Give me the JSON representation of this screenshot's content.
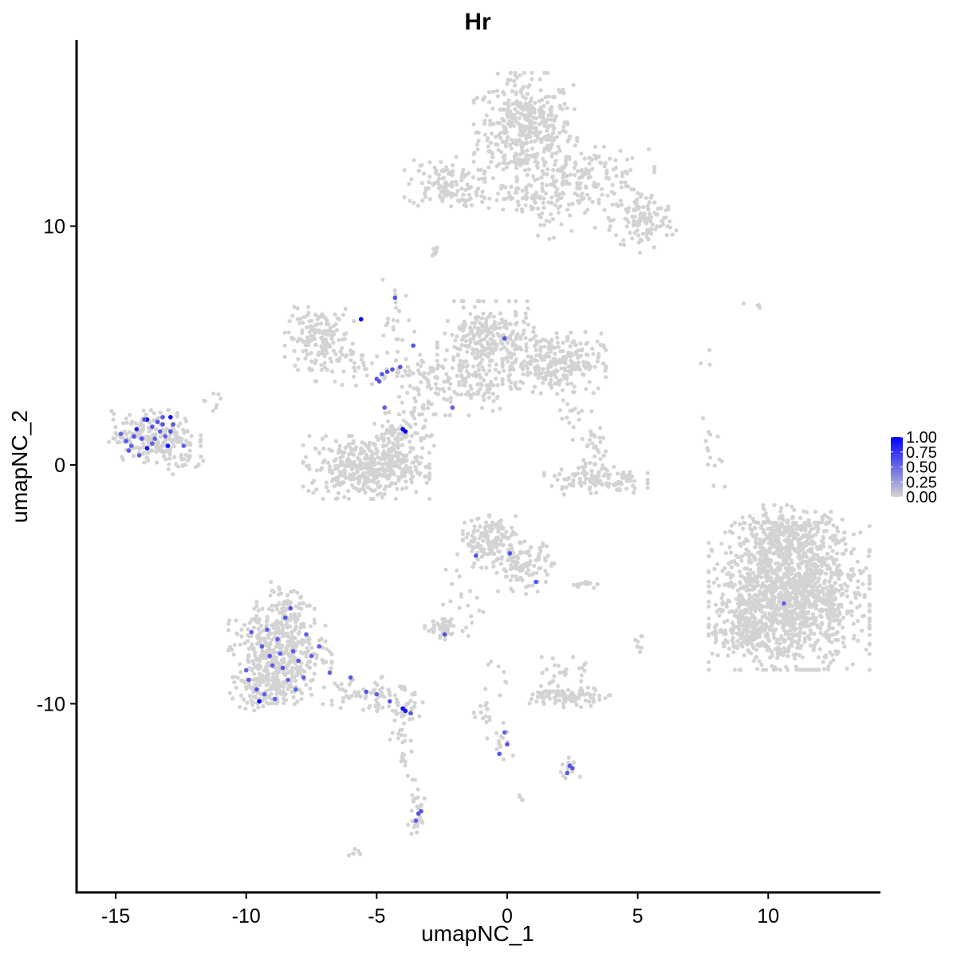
{
  "chart_data": {
    "type": "scatter",
    "title": "Hr",
    "xlabel": "umapNC_1",
    "ylabel": "umapNC_2",
    "xlim": [
      -16.5,
      14.3
    ],
    "ylim": [
      -17.9,
      17.8
    ],
    "x_ticks": [
      -15,
      -10,
      -5,
      0,
      5,
      10
    ],
    "x_tick_labels": [
      "-15",
      "-10",
      "-5",
      "0",
      "5",
      "10"
    ],
    "y_ticks": [
      -10,
      0,
      10
    ],
    "y_tick_labels": [
      "-10",
      "0",
      "10"
    ],
    "grid": false,
    "point_color_low": "#d3d3d3",
    "point_color_high": "#0000ff",
    "legend": {
      "position": "right",
      "range": [
        0,
        1
      ],
      "ticks": [
        1.0,
        0.75,
        0.5,
        0.25,
        0.0
      ],
      "tick_labels": [
        "1.00",
        "0.75",
        "0.50",
        "0.25",
        "0.00"
      ]
    },
    "clusters": [
      {
        "cx": 0.7,
        "cy": 14.0,
        "sx": 0.9,
        "sy": 1.1,
        "n": 420,
        "expr": 0
      },
      {
        "cx": 3.0,
        "cy": 12.0,
        "sx": 1.2,
        "sy": 0.6,
        "n": 160,
        "expr": 0
      },
      {
        "cx": 5.2,
        "cy": 10.2,
        "sx": 0.6,
        "sy": 0.6,
        "n": 120,
        "expr": 0
      },
      {
        "cx": -2.4,
        "cy": 11.8,
        "sx": 0.7,
        "sy": 0.5,
        "n": 110,
        "expr": 0
      },
      {
        "cx": -0.2,
        "cy": 11.2,
        "sx": 1.1,
        "sy": 0.2,
        "n": 45,
        "expr": 0
      },
      {
        "cx": 1.6,
        "cy": 10.6,
        "sx": 0.8,
        "sy": 0.7,
        "n": 45,
        "expr": 0
      },
      {
        "cx": -2.7,
        "cy": 8.9,
        "sx": 0.2,
        "sy": 0.2,
        "n": 8,
        "expr": 0
      },
      {
        "cx": -7.2,
        "cy": 5.3,
        "sx": 0.6,
        "sy": 0.6,
        "n": 160,
        "expr": 0
      },
      {
        "cx": -5.6,
        "cy": 4.2,
        "sx": 0.8,
        "sy": 0.4,
        "n": 40,
        "expr": 0
      },
      {
        "cx": -0.7,
        "cy": 5.1,
        "sx": 0.9,
        "sy": 0.8,
        "n": 280,
        "expr": 0
      },
      {
        "cx": 1.8,
        "cy": 4.3,
        "sx": 0.9,
        "sy": 0.6,
        "n": 250,
        "expr": 0
      },
      {
        "cx": -1.8,
        "cy": 3.4,
        "sx": 1.1,
        "sy": 0.6,
        "n": 120,
        "expr": 0
      },
      {
        "cx": -4.2,
        "cy": 5.8,
        "sx": 0.3,
        "sy": 1.0,
        "n": 22,
        "expr": 0
      },
      {
        "cx": -3.1,
        "cy": 3.9,
        "sx": 0.5,
        "sy": 0.4,
        "n": 25,
        "expr": 0
      },
      {
        "cx": -5.4,
        "cy": -0.1,
        "sx": 1.1,
        "sy": 0.6,
        "n": 380,
        "expr": 0
      },
      {
        "cx": -4.4,
        "cy": 0.9,
        "sx": 0.4,
        "sy": 0.6,
        "n": 80,
        "expr": 0
      },
      {
        "cx": -3.6,
        "cy": 1.8,
        "sx": 0.5,
        "sy": 0.6,
        "n": 40,
        "expr": 0
      },
      {
        "cx": -13.5,
        "cy": 1.2,
        "sx": 0.8,
        "sy": 0.5,
        "n": 210,
        "expr": 0.12
      },
      {
        "cx": -12.5,
        "cy": 0.2,
        "sx": 0.4,
        "sy": 0.3,
        "n": 25,
        "expr": 0
      },
      {
        "cx": -11.4,
        "cy": 2.7,
        "sx": 0.2,
        "sy": 0.2,
        "n": 8,
        "expr": 0
      },
      {
        "cx": 3.4,
        "cy": -0.6,
        "sx": 0.9,
        "sy": 0.3,
        "n": 110,
        "expr": 0
      },
      {
        "cx": 3.3,
        "cy": 0.8,
        "sx": 0.3,
        "sy": 0.7,
        "n": 35,
        "expr": 0
      },
      {
        "cx": 2.4,
        "cy": 1.9,
        "sx": 0.2,
        "sy": 0.6,
        "n": 15,
        "expr": 0
      },
      {
        "cx": 7.9,
        "cy": 0.2,
        "sx": 0.2,
        "sy": 0.8,
        "n": 14,
        "expr": 0
      },
      {
        "cx": 10.8,
        "cy": -5.5,
        "sx": 1.4,
        "sy": 1.4,
        "n": 1400,
        "expr": 0
      },
      {
        "cx": 10.8,
        "cy": -3.0,
        "sx": 1.0,
        "sy": 0.6,
        "n": 250,
        "expr": 0
      },
      {
        "cx": 9.3,
        "cy": -7.0,
        "sx": 0.6,
        "sy": 0.4,
        "n": 120,
        "expr": 0
      },
      {
        "cx": -0.6,
        "cy": -3.2,
        "sx": 0.5,
        "sy": 0.5,
        "n": 150,
        "expr": 0
      },
      {
        "cx": 0.7,
        "cy": -4.3,
        "sx": 0.5,
        "sy": 0.5,
        "n": 100,
        "expr": 0
      },
      {
        "cx": -1.8,
        "cy": -5.5,
        "sx": 0.4,
        "sy": 0.8,
        "n": 22,
        "expr": 0
      },
      {
        "cx": 3.1,
        "cy": -5.0,
        "sx": 0.4,
        "sy": 0.1,
        "n": 12,
        "expr": 0
      },
      {
        "cx": -2.5,
        "cy": -6.9,
        "sx": 0.3,
        "sy": 0.2,
        "n": 40,
        "expr": 0
      },
      {
        "cx": -8.7,
        "cy": -8.0,
        "sx": 0.9,
        "sy": 0.9,
        "n": 420,
        "expr": 0.1
      },
      {
        "cx": -9.2,
        "cy": -9.4,
        "sx": 0.6,
        "sy": 0.4,
        "n": 100,
        "expr": 0.1
      },
      {
        "cx": -8.5,
        "cy": -6.0,
        "sx": 0.5,
        "sy": 0.5,
        "n": 70,
        "expr": 0.08
      },
      {
        "cx": -5.3,
        "cy": -9.5,
        "sx": 0.8,
        "sy": 0.4,
        "n": 70,
        "expr": 0.12
      },
      {
        "cx": -3.9,
        "cy": -10.3,
        "sx": 0.3,
        "sy": 0.3,
        "n": 25,
        "expr": 0.15
      },
      {
        "cx": -4.1,
        "cy": -12.0,
        "sx": 0.2,
        "sy": 0.8,
        "n": 20,
        "expr": 0
      },
      {
        "cx": -3.5,
        "cy": -14.5,
        "sx": 0.2,
        "sy": 0.6,
        "n": 30,
        "expr": 0.05
      },
      {
        "cx": 2.4,
        "cy": -9.7,
        "sx": 0.7,
        "sy": 0.2,
        "n": 100,
        "expr": 0
      },
      {
        "cx": 2.2,
        "cy": -8.7,
        "sx": 0.4,
        "sy": 0.3,
        "n": 25,
        "expr": 0
      },
      {
        "cx": -0.7,
        "cy": -10.0,
        "sx": 0.3,
        "sy": 0.8,
        "n": 25,
        "expr": 0
      },
      {
        "cx": -0.2,
        "cy": -11.6,
        "sx": 0.2,
        "sy": 0.5,
        "n": 10,
        "expr": 0.1
      },
      {
        "cx": 2.4,
        "cy": -12.7,
        "sx": 0.2,
        "sy": 0.2,
        "n": 15,
        "expr": 0.2
      },
      {
        "cx": 5.0,
        "cy": -7.4,
        "sx": 0.1,
        "sy": 0.3,
        "n": 8,
        "expr": 0
      },
      {
        "cx": 0.6,
        "cy": -13.9,
        "sx": 0.1,
        "sy": 0.1,
        "n": 4,
        "expr": 0
      },
      {
        "cx": -5.9,
        "cy": -16.3,
        "sx": 0.15,
        "sy": 0.1,
        "n": 6,
        "expr": 0
      },
      {
        "cx": 9.5,
        "cy": 6.7,
        "sx": 0.2,
        "sy": 0.1,
        "n": 4,
        "expr": 0
      },
      {
        "cx": 7.7,
        "cy": 4.6,
        "sx": 0.2,
        "sy": 0.3,
        "n": 3,
        "expr": 0
      }
    ],
    "expressed_points": [
      {
        "x": -14.8,
        "y": 1.3,
        "v": 0.55
      },
      {
        "x": -14.6,
        "y": 1.0,
        "v": 0.6
      },
      {
        "x": -14.4,
        "y": 0.8,
        "v": 0.55
      },
      {
        "x": -14.2,
        "y": 1.5,
        "v": 0.85
      },
      {
        "x": -14.0,
        "y": 1.1,
        "v": 0.6
      },
      {
        "x": -13.8,
        "y": 1.9,
        "v": 0.95
      },
      {
        "x": -13.8,
        "y": 0.7,
        "v": 0.9
      },
      {
        "x": -13.6,
        "y": 1.6,
        "v": 0.6
      },
      {
        "x": -13.4,
        "y": 1.8,
        "v": 0.6
      },
      {
        "x": -13.3,
        "y": 1.4,
        "v": 0.55
      },
      {
        "x": -13.2,
        "y": 2.0,
        "v": 0.6
      },
      {
        "x": -13.1,
        "y": 1.2,
        "v": 0.55
      },
      {
        "x": -13.0,
        "y": 0.8,
        "v": 0.95
      },
      {
        "x": -12.9,
        "y": 2.0,
        "v": 0.95
      },
      {
        "x": -12.8,
        "y": 1.7,
        "v": 0.6
      },
      {
        "x": -14.5,
        "y": 0.6,
        "v": 0.6
      },
      {
        "x": -14.1,
        "y": 0.4,
        "v": 0.55
      },
      {
        "x": -13.5,
        "y": 1.1,
        "v": 0.55
      },
      {
        "x": -12.4,
        "y": 0.8,
        "v": 0.55
      },
      {
        "x": -13.9,
        "y": 1.9,
        "v": 0.6
      },
      {
        "x": -14.3,
        "y": 1.2,
        "v": 0.6
      },
      {
        "x": -13.6,
        "y": 0.9,
        "v": 0.55
      },
      {
        "x": -12.9,
        "y": 1.4,
        "v": 0.6
      },
      {
        "x": -13.2,
        "y": 1.7,
        "v": 0.6
      },
      {
        "x": -5.6,
        "y": 6.1,
        "v": 1.0
      },
      {
        "x": -4.3,
        "y": 7.0,
        "v": 0.6
      },
      {
        "x": -3.6,
        "y": 5.0,
        "v": 0.6
      },
      {
        "x": -4.8,
        "y": 3.8,
        "v": 0.6
      },
      {
        "x": -4.6,
        "y": 3.9,
        "v": 0.6
      },
      {
        "x": -4.4,
        "y": 4.0,
        "v": 0.6
      },
      {
        "x": -4.1,
        "y": 4.1,
        "v": 0.6
      },
      {
        "x": -5.0,
        "y": 3.6,
        "v": 0.6
      },
      {
        "x": -4.9,
        "y": 3.5,
        "v": 0.6
      },
      {
        "x": -4.7,
        "y": 2.4,
        "v": 0.55
      },
      {
        "x": -4.0,
        "y": 1.5,
        "v": 1.0
      },
      {
        "x": -3.9,
        "y": 1.4,
        "v": 1.0
      },
      {
        "x": -2.1,
        "y": 2.4,
        "v": 0.55
      },
      {
        "x": -0.1,
        "y": 5.3,
        "v": 0.6
      },
      {
        "x": -1.2,
        "y": -3.8,
        "v": 0.6
      },
      {
        "x": 0.1,
        "y": -3.7,
        "v": 0.6
      },
      {
        "x": 1.1,
        "y": -4.9,
        "v": 0.6
      },
      {
        "x": 10.6,
        "y": -5.8,
        "v": 0.55
      },
      {
        "x": -2.4,
        "y": -7.1,
        "v": 0.6
      },
      {
        "x": -9.8,
        "y": -7.0,
        "v": 0.55
      },
      {
        "x": -9.4,
        "y": -7.6,
        "v": 0.55
      },
      {
        "x": -9.1,
        "y": -8.0,
        "v": 0.6
      },
      {
        "x": -8.8,
        "y": -7.3,
        "v": 0.55
      },
      {
        "x": -8.6,
        "y": -8.5,
        "v": 0.6
      },
      {
        "x": -8.4,
        "y": -9.0,
        "v": 0.55
      },
      {
        "x": -8.2,
        "y": -7.8,
        "v": 0.55
      },
      {
        "x": -8.0,
        "y": -8.2,
        "v": 0.6
      },
      {
        "x": -7.8,
        "y": -8.9,
        "v": 0.55
      },
      {
        "x": -7.5,
        "y": -8.0,
        "v": 0.55
      },
      {
        "x": -9.6,
        "y": -9.4,
        "v": 0.6
      },
      {
        "x": -9.9,
        "y": -9.0,
        "v": 0.55
      },
      {
        "x": -10.0,
        "y": -8.6,
        "v": 0.55
      },
      {
        "x": -9.5,
        "y": -9.9,
        "v": 0.95
      },
      {
        "x": -8.9,
        "y": -9.8,
        "v": 0.55
      },
      {
        "x": -8.5,
        "y": -6.4,
        "v": 0.6
      },
      {
        "x": -8.3,
        "y": -6.0,
        "v": 0.6
      },
      {
        "x": -9.2,
        "y": -6.9,
        "v": 0.55
      },
      {
        "x": -7.2,
        "y": -7.6,
        "v": 0.55
      },
      {
        "x": -8.7,
        "y": -7.9,
        "v": 0.55
      },
      {
        "x": -9.0,
        "y": -8.4,
        "v": 0.55
      },
      {
        "x": -8.1,
        "y": -9.4,
        "v": 0.55
      },
      {
        "x": -7.7,
        "y": -7.1,
        "v": 0.55
      },
      {
        "x": -9.3,
        "y": -9.6,
        "v": 0.55
      },
      {
        "x": -6.8,
        "y": -8.7,
        "v": 0.55
      },
      {
        "x": -6.0,
        "y": -8.9,
        "v": 0.6
      },
      {
        "x": -5.4,
        "y": -9.5,
        "v": 0.6
      },
      {
        "x": -5.0,
        "y": -9.6,
        "v": 0.55
      },
      {
        "x": -4.5,
        "y": -9.9,
        "v": 0.6
      },
      {
        "x": -4.0,
        "y": -10.2,
        "v": 0.95
      },
      {
        "x": -3.9,
        "y": -10.3,
        "v": 0.9
      },
      {
        "x": -3.7,
        "y": -10.4,
        "v": 0.6
      },
      {
        "x": -3.4,
        "y": -14.6,
        "v": 0.6
      },
      {
        "x": -3.3,
        "y": -14.5,
        "v": 0.6
      },
      {
        "x": -3.5,
        "y": -14.9,
        "v": 0.55
      },
      {
        "x": 0.0,
        "y": -11.7,
        "v": 0.6
      },
      {
        "x": -0.3,
        "y": -12.1,
        "v": 0.6
      },
      {
        "x": -0.1,
        "y": -11.2,
        "v": 0.55
      },
      {
        "x": 2.3,
        "y": -12.9,
        "v": 0.6
      },
      {
        "x": 2.4,
        "y": -12.6,
        "v": 0.6
      },
      {
        "x": 2.5,
        "y": -12.7,
        "v": 0.6
      }
    ]
  }
}
